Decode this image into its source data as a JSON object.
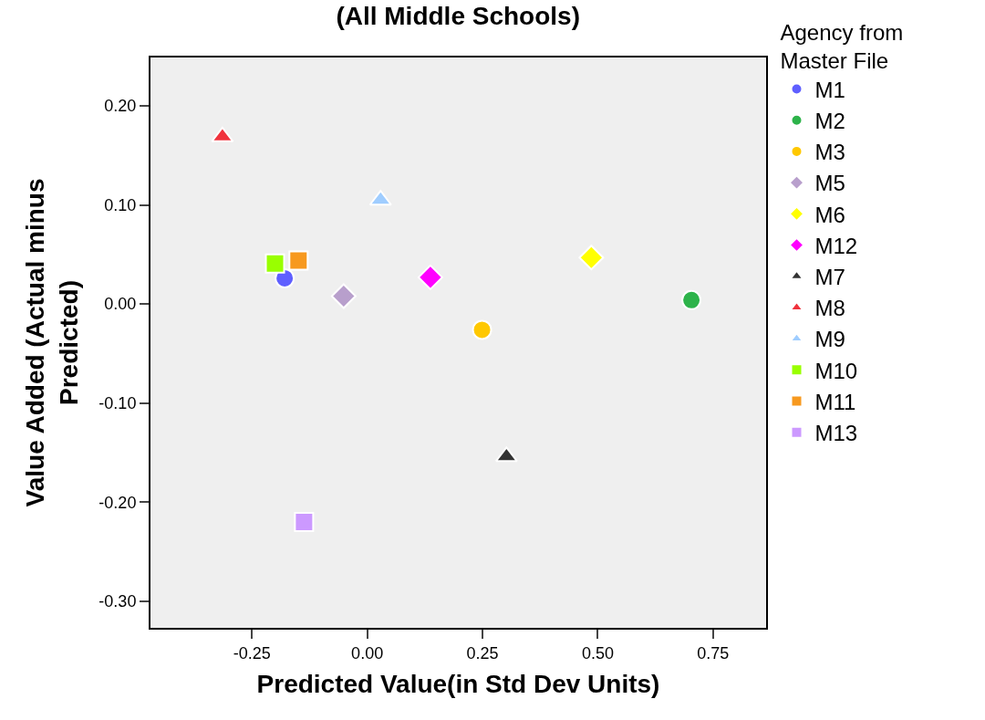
{
  "chart_data": {
    "type": "scatter",
    "title": "(All Middle Schools)",
    "xlabel": "Predicted Value(in Std Dev Units)",
    "ylabel": "Value Added (Actual minus\nPredicted)",
    "legend_title": "Agency from\nMaster File",
    "legend": "right",
    "grid": false,
    "xlim": [
      -0.47,
      0.865
    ],
    "xticks": [
      {
        "value": -0.25,
        "label": "-0.25"
      },
      {
        "value": 0,
        "label": "0.00"
      },
      {
        "value": 0.25,
        "label": "0.25"
      },
      {
        "value": 0.5,
        "label": "0.50"
      },
      {
        "value": 0.75,
        "label": "0.75"
      }
    ],
    "ylim": [
      -0.327,
      0.249
    ],
    "yticks": [
      {
        "value": -0.3,
        "label": "-0.30"
      },
      {
        "value": -0.2,
        "label": "-0.20"
      },
      {
        "value": -0.1,
        "label": "-0.10"
      },
      {
        "value": 0,
        "label": "0.00"
      },
      {
        "value": 0.1,
        "label": "0.10"
      },
      {
        "value": 0.2,
        "label": "0.20"
      }
    ],
    "series": [
      {
        "name": "M1",
        "color": "#5f5fff",
        "marker": "circle",
        "x": [
          -0.179
        ],
        "values": [
          0.026
        ]
      },
      {
        "name": "M2",
        "color": "#2db34a",
        "marker": "circle",
        "x": [
          0.703
        ],
        "values": [
          0.004
        ]
      },
      {
        "name": "M3",
        "color": "#ffc800",
        "marker": "circle",
        "x": [
          0.249
        ],
        "values": [
          -0.026
        ]
      },
      {
        "name": "M5",
        "color": "#b89fcc",
        "marker": "diamond",
        "x": [
          -0.051
        ],
        "values": [
          0.008
        ]
      },
      {
        "name": "M6",
        "color": "#ffff00",
        "marker": "diamond",
        "x": [
          0.486
        ],
        "values": [
          0.047
        ]
      },
      {
        "name": "M12",
        "color": "#ff00ff",
        "marker": "diamond",
        "x": [
          0.137
        ],
        "values": [
          0.027
        ]
      },
      {
        "name": "M7",
        "color": "#333333",
        "marker": "triangle",
        "x": [
          0.302
        ],
        "values": [
          -0.154
        ]
      },
      {
        "name": "M8",
        "color": "#f0323c",
        "marker": "triangle",
        "x": [
          -0.314
        ],
        "values": [
          0.169
        ]
      },
      {
        "name": "M9",
        "color": "#9fcdff",
        "marker": "triangle",
        "x": [
          0.029
        ],
        "values": [
          0.105
        ]
      },
      {
        "name": "M10",
        "color": "#99ff00",
        "marker": "square",
        "x": [
          -0.2
        ],
        "values": [
          0.041
        ]
      },
      {
        "name": "M11",
        "color": "#f7991f",
        "marker": "square",
        "x": [
          -0.149
        ],
        "values": [
          0.044
        ]
      },
      {
        "name": "M13",
        "color": "#cc99ff",
        "marker": "square",
        "x": [
          -0.137
        ],
        "values": [
          -0.22
        ]
      }
    ]
  }
}
